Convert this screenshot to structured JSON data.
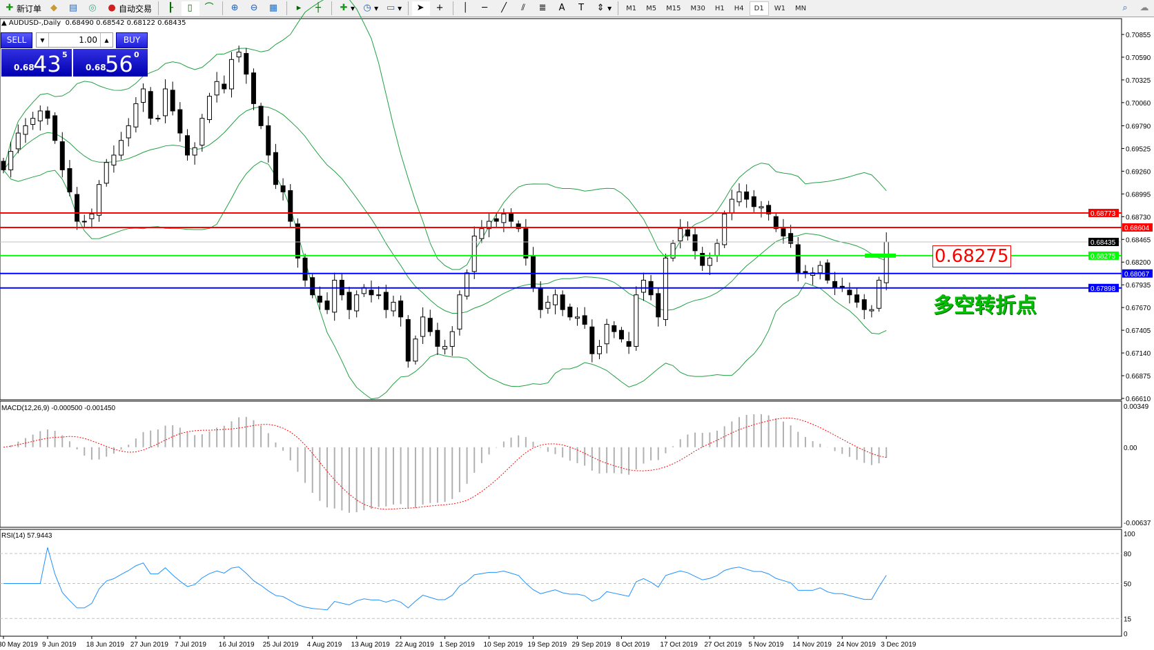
{
  "toolbar": {
    "new_order": "新订单",
    "auto_trading": "自动交易",
    "timeframes": [
      "M1",
      "M5",
      "M15",
      "M30",
      "H1",
      "H4",
      "D1",
      "W1",
      "MN"
    ],
    "active_timeframe": "D1"
  },
  "header": {
    "symbol": "AUDUSD-,Daily",
    "ohlc": "0.68490 0.68542 0.68122 0.68435"
  },
  "trade_panel": {
    "sell_label": "SELL",
    "buy_label": "BUY",
    "lot": "1.00",
    "sell_small": "0.68",
    "sell_big": "43",
    "sell_tiny": "5",
    "buy_small": "0.68",
    "buy_big": "56",
    "buy_tiny": "0"
  },
  "annotation": {
    "price": "0.68275",
    "text": "多空转折点"
  },
  "colors": {
    "bull_bear_line": "#00ff00",
    "resistance": "#ff0000",
    "support": "#0000ff",
    "bollinger": "#20a040",
    "macd_signal": "#ff0000",
    "rsi": "#1e90ff"
  },
  "chart": {
    "price_ticks": [
      "0.70855",
      "0.70590",
      "0.70325",
      "0.70060",
      "0.69790",
      "0.69525",
      "0.69260",
      "0.68995",
      "0.68730",
      "0.68465",
      "0.68200",
      "0.67935",
      "0.67670",
      "0.67405",
      "0.67140",
      "0.66875",
      "0.66610"
    ],
    "price_range": [
      0.6661,
      0.70855
    ],
    "hlines": [
      {
        "price": 0.68773,
        "label": "0.68773",
        "color": "#ff0000"
      },
      {
        "price": 0.68604,
        "label": "0.68604",
        "color": "#ff0000"
      },
      {
        "price": 0.68435,
        "label": "0.68435",
        "color": "#c0c0c0",
        "label_bg": "#000000"
      },
      {
        "price": 0.68275,
        "label": "0.68275",
        "color": "#00ff00"
      },
      {
        "price": 0.68067,
        "label": "0.68067",
        "color": "#0000ff"
      },
      {
        "price": 0.67898,
        "label": "0.67898",
        "color": "#0000ff"
      }
    ],
    "closes": [
      0.69276,
      0.69491,
      0.69705,
      0.69791,
      0.69877,
      0.69963,
      0.69877,
      0.69619,
      0.69276,
      0.69019,
      0.68676,
      0.68676,
      0.68761,
      0.69105,
      0.69362,
      0.69448,
      0.69619,
      0.69791,
      0.70048,
      0.7022,
      0.69877,
      0.69877,
      0.7022,
      0.69963,
      0.69705,
      0.69448,
      0.69534,
      0.69877,
      0.70134,
      0.70306,
      0.7022,
      0.70563,
      0.70649,
      0.70392,
      0.70048,
      0.69791,
      0.69448,
      0.69105,
      0.69019,
      0.68676,
      0.68247,
      0.67989,
      0.67818,
      0.67732,
      0.67646,
      0.67989,
      0.67818,
      0.67646,
      0.67818,
      0.67903,
      0.67818,
      0.67818,
      0.67646,
      0.67732,
      0.6756,
      0.67045,
      0.67303,
      0.6756,
      0.67389,
      0.67217,
      0.67217,
      0.67389,
      0.67818,
      0.68075,
      0.68504,
      0.6859,
      0.68676,
      0.68676,
      0.68761,
      0.68676,
      0.6859,
      0.68247,
      0.67903,
      0.67646,
      0.67732,
      0.67818,
      0.67646,
      0.6756,
      0.6756,
      0.67474,
      0.67131,
      0.67217,
      0.67474,
      0.67389,
      0.67303,
      0.67217,
      0.67818,
      0.67989,
      0.67818,
      0.6756,
      0.68247,
      0.68418,
      0.6859,
      0.68504,
      0.68332,
      0.68161,
      0.68247,
      0.68418,
      0.68761,
      0.68933,
      0.69019,
      0.68933,
      0.68847,
      0.68847,
      0.68761,
      0.6859,
      0.68504,
      0.68418,
      0.68075,
      0.68075,
      0.68075,
      0.68161,
      0.67989,
      0.67903,
      0.67903,
      0.67818,
      0.67732,
      0.67646,
      0.67646,
      0.67989,
      0.68435
    ],
    "macd_label": "MACD(12,26,9) -0.000500 -0.001450",
    "macd_ticks": [
      "0.00349",
      "0.00",
      "-0.00637"
    ],
    "macd_range": [
      -0.00637,
      0.00349
    ],
    "rsi_label": "RSI(14) 57.9443",
    "rsi_ticks": [
      "100",
      "80",
      "50",
      "15",
      "0"
    ],
    "dates": [
      "30 May 2019",
      "9 Jun 2019",
      "18 Jun 2019",
      "27 Jun 2019",
      "7 Jul 2019",
      "16 Jul 2019",
      "25 Jul 2019",
      "4 Aug 2019",
      "13 Aug 2019",
      "22 Aug 2019",
      "1 Sep 2019",
      "10 Sep 2019",
      "19 Sep 2019",
      "29 Sep 2019",
      "8 Oct 2019",
      "17 Oct 2019",
      "27 Oct 2019",
      "5 Nov 2019",
      "14 Nov 2019",
      "24 Nov 2019",
      "3 Dec 2019"
    ]
  }
}
